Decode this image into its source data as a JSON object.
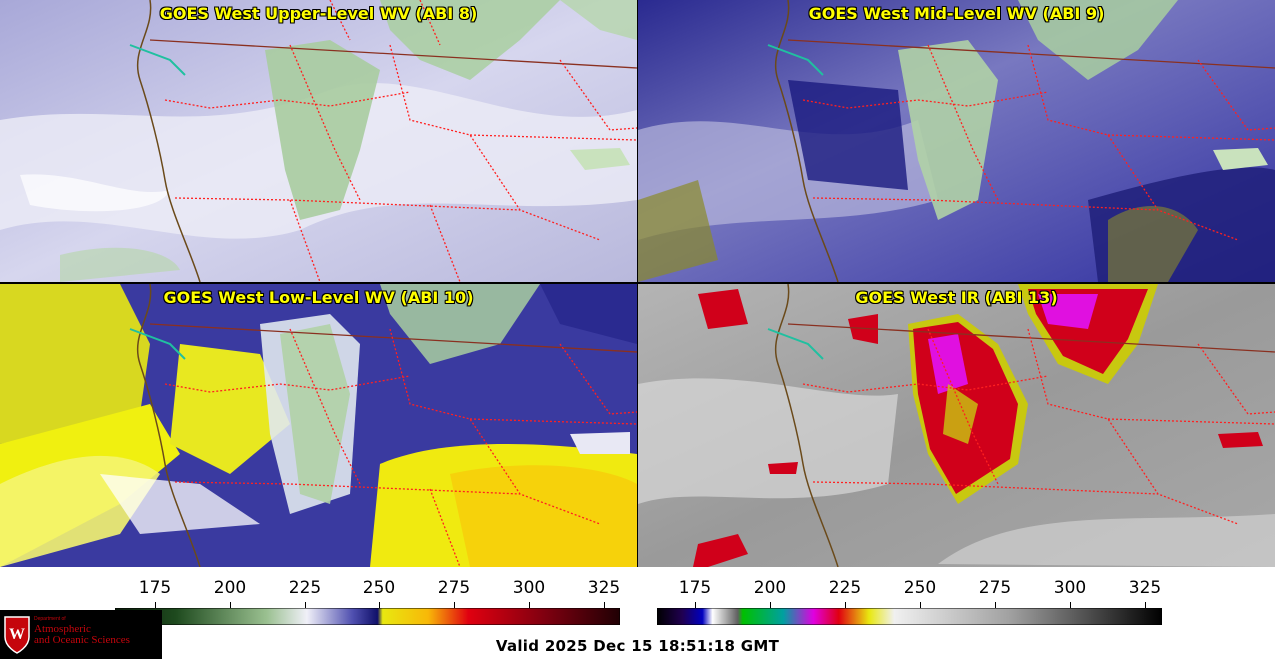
{
  "panels": [
    {
      "id": "upper",
      "title": "GOES West Upper-Level WV (ABI 8)"
    },
    {
      "id": "mid",
      "title": "GOES West Mid-Level WV (ABI 9)"
    },
    {
      "id": "low",
      "title": "GOES West Low-Level WV (ABI 10)"
    },
    {
      "id": "ir",
      "title": "GOES West IR (ABI 13)"
    }
  ],
  "colorbars": [
    {
      "id": "wv",
      "ticks": [
        "175",
        "200",
        "225",
        "250",
        "275",
        "300",
        "325"
      ]
    },
    {
      "id": "ir",
      "ticks": [
        "175",
        "200",
        "225",
        "250",
        "275",
        "300",
        "325"
      ]
    }
  ],
  "valid_time": "Valid 2025 Dec 15 18:51:18 GMT",
  "logo": {
    "line1": "Department of",
    "line2": "Atmospheric",
    "line3": "and Oceanic Sciences",
    "crest_letter": "W"
  },
  "colors": {
    "title_text": "#ffff00",
    "state_borders": "#ff2020",
    "coastline": "#6b4a1a",
    "lakes": "#20c0a0"
  }
}
